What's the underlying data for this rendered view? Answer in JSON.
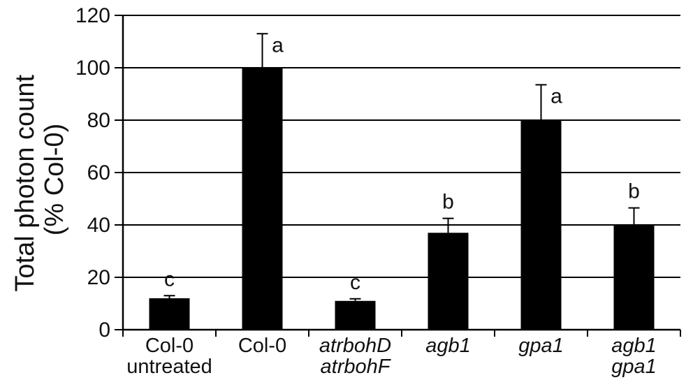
{
  "chart_data": {
    "type": "bar",
    "ylabel": [
      "Total photon count",
      "(% Col-0)"
    ],
    "ylim": [
      0,
      120
    ],
    "yticks": [
      "0",
      "20",
      "40",
      "60",
      "80",
      "100",
      "120"
    ],
    "grid": true,
    "categories": [
      {
        "lines": [
          "Col-0",
          "untreated"
        ],
        "italic": false
      },
      {
        "lines": [
          "Col-0"
        ],
        "italic": false
      },
      {
        "lines": [
          "atrbohD",
          "atrbohF"
        ],
        "italic": true
      },
      {
        "lines": [
          "agb1"
        ],
        "italic": true
      },
      {
        "lines": [
          "gpa1"
        ],
        "italic": true
      },
      {
        "lines": [
          "agb1",
          "gpa1"
        ],
        "italic": true
      }
    ],
    "values": [
      12,
      100,
      11,
      37,
      80,
      40
    ],
    "errors": [
      1,
      13,
      0.8,
      5.5,
      13.5,
      6.5
    ],
    "significance": [
      "c",
      "a",
      "c",
      "b",
      "a",
      "b"
    ],
    "colors": {
      "bar": "#000000",
      "grid": "#000000",
      "axis": "#000000"
    }
  }
}
